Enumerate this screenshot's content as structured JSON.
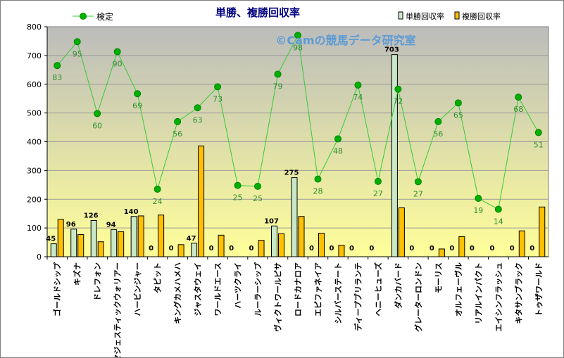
{
  "chart_data": {
    "type": "bar",
    "title": "単勝、複勝回収率",
    "watermark": "©Camの競馬データ研究室",
    "legend": {
      "line_label": "検定",
      "win_label": "単勝回収率",
      "place_label": "複勝回収率"
    },
    "ylim": [
      0,
      800
    ],
    "yticks": [
      0,
      100,
      200,
      300,
      400,
      500,
      600,
      700,
      800
    ],
    "categories": [
      "ゴールドシップ",
      "キズナ",
      "ドレフォン",
      "マジェスティックウォリアー",
      "ハービンジャー",
      "タピット",
      "キングカメハメハ",
      "ジャスタウェイ",
      "ワールドエース",
      "ハーツクライ",
      "ルーラーシップ",
      "ヴィクトワールピサ",
      "ロードカナロア",
      "エピファネイア",
      "シルバーステート",
      "ディープブリランテ",
      "ヘニーヒューズ",
      "ダンカバード",
      "グレーターロンドン",
      "モーリス",
      "オルフェーヴル",
      "リアルインパクト",
      "エイシンフラッシュ",
      "キタサンブラック",
      "トゥザワールド"
    ],
    "series": [
      {
        "name": "単勝回収率",
        "values": [
          45,
          96,
          126,
          94,
          140,
          0,
          0,
          47,
          0,
          0,
          0,
          107,
          275,
          0,
          0,
          0,
          0,
          703,
          0,
          0,
          0,
          0,
          0,
          0,
          0
        ]
      },
      {
        "name": "複勝回収率",
        "values": [
          130,
          77,
          52,
          87,
          142,
          145,
          42,
          385,
          75,
          0,
          57,
          80,
          140,
          82,
          40,
          0,
          0,
          170,
          0,
          27,
          70,
          0,
          0,
          90,
          173
        ]
      },
      {
        "name": "検定",
        "values": [
          83,
          95,
          60,
          90,
          69,
          24,
          56,
          63,
          73,
          25,
          25,
          79,
          98,
          28,
          48,
          74,
          27,
          72,
          27,
          56,
          65,
          19,
          14,
          68,
          51
        ]
      }
    ],
    "line_y": [
      665,
      748,
      498,
      713,
      567,
      235,
      470,
      518,
      591,
      248,
      245,
      635,
      770,
      270,
      410,
      597,
      262,
      583,
      261,
      470,
      535,
      203,
      165,
      555,
      432
    ],
    "colors": {
      "plot_top": "#bcbcbc",
      "plot_bottom": "#ffff99",
      "win_bar": "#c8e8c8",
      "place_bar": "#ffc000",
      "line": "#33cc33",
      "marker": "#00b000",
      "value_label": "#2f8f2f",
      "title": "#000080",
      "watermark": "#5b9bd5"
    }
  }
}
